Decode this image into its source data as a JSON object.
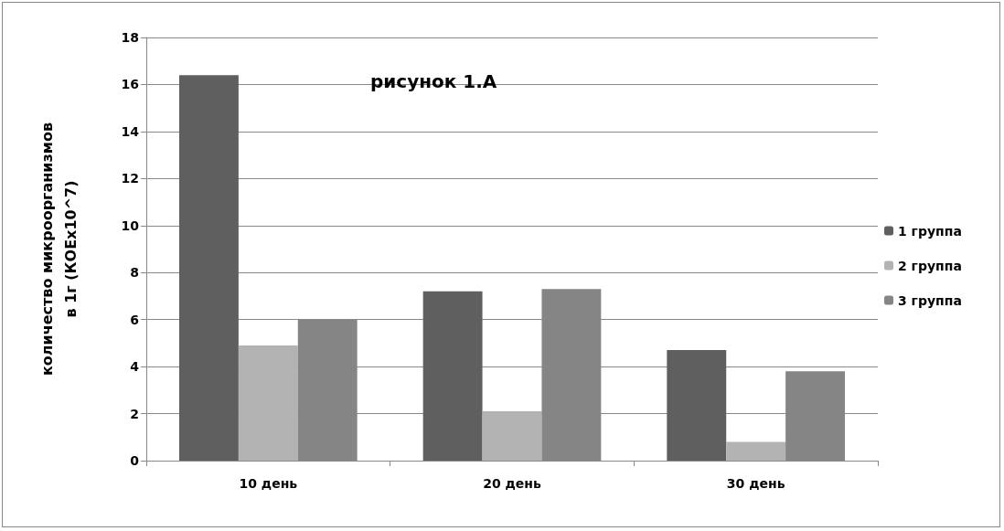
{
  "chart_data": {
    "type": "bar",
    "title": "рисунок 1.A",
    "ylabel": "количество микроорганизмов\nв 1г (КОЕх10^7)",
    "categories": [
      "10 день",
      "20 день",
      "30 день"
    ],
    "series": [
      {
        "name": "1 группа",
        "color": "#5f5f5f",
        "values": [
          16.4,
          7.2,
          4.7
        ]
      },
      {
        "name": "2 группа",
        "color": "#b3b3b3",
        "values": [
          4.9,
          2.1,
          0.8
        ]
      },
      {
        "name": "3 группа",
        "color": "#858585",
        "values": [
          6.0,
          7.3,
          3.8
        ]
      }
    ],
    "ylim": [
      0,
      18
    ],
    "yticks": [
      0,
      2,
      4,
      6,
      8,
      10,
      12,
      14,
      16,
      18
    ],
    "grid": "y",
    "legend": "right"
  }
}
